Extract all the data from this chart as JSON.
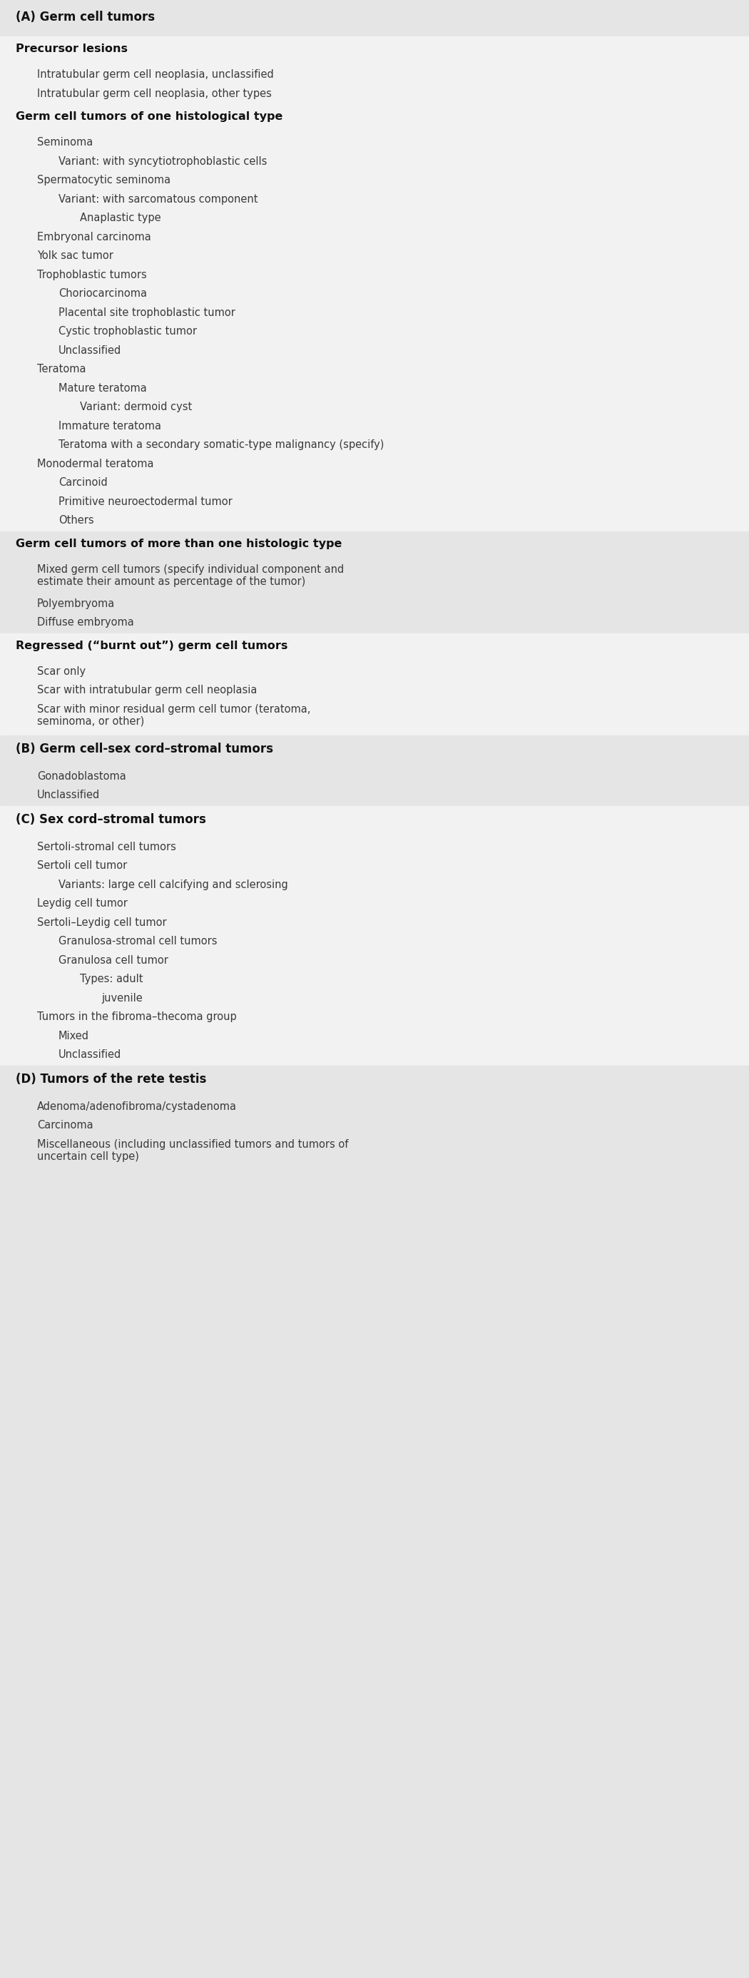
{
  "light_gray_bg": "#e5e5e5",
  "white_bg": "#f2f2f2",
  "text_color": "#3a3a3a",
  "dark_text": "#111111",
  "sections": [
    {
      "text": "(A) Germ cell tumors",
      "style": "section_header",
      "indent": 0,
      "bg": "light_gray"
    },
    {
      "text": "Precursor lesions",
      "style": "subsection_bold",
      "indent": 0,
      "bg": "white"
    },
    {
      "text": "Intratubular germ cell neoplasia, unclassified",
      "style": "normal",
      "indent": 1,
      "bg": "white"
    },
    {
      "text": "Intratubular germ cell neoplasia, other types",
      "style": "normal",
      "indent": 1,
      "bg": "white"
    },
    {
      "text": "Germ cell tumors of one histological type",
      "style": "subsection_bold",
      "indent": 0,
      "bg": "white"
    },
    {
      "text": "Seminoma",
      "style": "normal",
      "indent": 1,
      "bg": "white"
    },
    {
      "text": "Variant: with syncytiotrophoblastic cells",
      "style": "normal",
      "indent": 2,
      "bg": "white"
    },
    {
      "text": "Spermatocytic seminoma",
      "style": "normal",
      "indent": 1,
      "bg": "white"
    },
    {
      "text": "Variant: with sarcomatous component",
      "style": "normal",
      "indent": 2,
      "bg": "white"
    },
    {
      "text": "Anaplastic type",
      "style": "normal",
      "indent": 3,
      "bg": "white"
    },
    {
      "text": "Embryonal carcinoma",
      "style": "normal",
      "indent": 1,
      "bg": "white"
    },
    {
      "text": "Yolk sac tumor",
      "style": "normal",
      "indent": 1,
      "bg": "white"
    },
    {
      "text": "Trophoblastic tumors",
      "style": "normal",
      "indent": 1,
      "bg": "white"
    },
    {
      "text": "Choriocarcinoma",
      "style": "normal",
      "indent": 2,
      "bg": "white"
    },
    {
      "text": "Placental site trophoblastic tumor",
      "style": "normal",
      "indent": 2,
      "bg": "white"
    },
    {
      "text": "Cystic trophoblastic tumor",
      "style": "normal",
      "indent": 2,
      "bg": "white"
    },
    {
      "text": "Unclassified",
      "style": "normal",
      "indent": 2,
      "bg": "white"
    },
    {
      "text": "Teratoma",
      "style": "normal",
      "indent": 1,
      "bg": "white"
    },
    {
      "text": "Mature teratoma",
      "style": "normal",
      "indent": 2,
      "bg": "white"
    },
    {
      "text": "Variant: dermoid cyst",
      "style": "normal",
      "indent": 3,
      "bg": "white"
    },
    {
      "text": "Immature teratoma",
      "style": "normal",
      "indent": 2,
      "bg": "white"
    },
    {
      "text": "Teratoma with a secondary somatic-type malignancy (specify)",
      "style": "normal",
      "indent": 2,
      "bg": "white"
    },
    {
      "text": "Monodermal teratoma",
      "style": "normal",
      "indent": 1,
      "bg": "white"
    },
    {
      "text": "Carcinoid",
      "style": "normal",
      "indent": 2,
      "bg": "white"
    },
    {
      "text": "Primitive neuroectodermal tumor",
      "style": "normal",
      "indent": 2,
      "bg": "white"
    },
    {
      "text": "Others",
      "style": "normal",
      "indent": 2,
      "bg": "white"
    },
    {
      "text": "Germ cell tumors of more than one histologic type",
      "style": "subsection_bold",
      "indent": 0,
      "bg": "light_gray"
    },
    {
      "text": "Mixed germ cell tumors (specify individual component and\nestimate their amount as percentage of the tumor)",
      "style": "normal",
      "indent": 1,
      "bg": "light_gray"
    },
    {
      "text": "Polyembryoma",
      "style": "normal",
      "indent": 1,
      "bg": "light_gray"
    },
    {
      "text": "Diffuse embryoma",
      "style": "normal",
      "indent": 1,
      "bg": "light_gray"
    },
    {
      "text": "Regressed (“burnt out”) germ cell tumors",
      "style": "subsection_bold",
      "indent": 0,
      "bg": "white"
    },
    {
      "text": "Scar only",
      "style": "normal",
      "indent": 1,
      "bg": "white"
    },
    {
      "text": "Scar with intratubular germ cell neoplasia",
      "style": "normal",
      "indent": 1,
      "bg": "white"
    },
    {
      "text": "Scar with minor residual germ cell tumor (teratoma,\nseminoma, or other)",
      "style": "normal",
      "indent": 1,
      "bg": "white"
    },
    {
      "text": "(B) Germ cell-sex cord–stromal tumors",
      "style": "section_header",
      "indent": 0,
      "bg": "light_gray"
    },
    {
      "text": "Gonadoblastoma",
      "style": "normal",
      "indent": 1,
      "bg": "light_gray"
    },
    {
      "text": "Unclassified",
      "style": "normal",
      "indent": 1,
      "bg": "light_gray"
    },
    {
      "text": "(C) Sex cord–stromal tumors",
      "style": "section_header",
      "indent": 0,
      "bg": "white"
    },
    {
      "text": "Sertoli-stromal cell tumors",
      "style": "normal",
      "indent": 1,
      "bg": "white"
    },
    {
      "text": "Sertoli cell tumor",
      "style": "normal",
      "indent": 1,
      "bg": "white"
    },
    {
      "text": "Variants: large cell calcifying and sclerosing",
      "style": "normal",
      "indent": 2,
      "bg": "white"
    },
    {
      "text": "Leydig cell tumor",
      "style": "normal",
      "indent": 1,
      "bg": "white"
    },
    {
      "text": "Sertoli–Leydig cell tumor",
      "style": "normal",
      "indent": 1,
      "bg": "white"
    },
    {
      "text": "Granulosa-stromal cell tumors",
      "style": "normal",
      "indent": 2,
      "bg": "white"
    },
    {
      "text": "Granulosa cell tumor",
      "style": "normal",
      "indent": 2,
      "bg": "white"
    },
    {
      "text": "Types: adult",
      "style": "normal",
      "indent": 3,
      "bg": "white"
    },
    {
      "text": "juvenile",
      "style": "normal",
      "indent": 4,
      "bg": "white"
    },
    {
      "text": "Tumors in the fibroma–thecoma group",
      "style": "normal",
      "indent": 1,
      "bg": "white"
    },
    {
      "text": "Mixed",
      "style": "normal",
      "indent": 2,
      "bg": "white"
    },
    {
      "text": "Unclassified",
      "style": "normal",
      "indent": 2,
      "bg": "white"
    },
    {
      "text": "(D) Tumors of the rete testis",
      "style": "section_header",
      "indent": 0,
      "bg": "light_gray"
    },
    {
      "text": "Adenoma/adenofibroma/cystadenoma",
      "style": "normal",
      "indent": 1,
      "bg": "light_gray"
    },
    {
      "text": "Carcinoma",
      "style": "normal",
      "indent": 1,
      "bg": "light_gray"
    },
    {
      "text": "Miscellaneous (including unclassified tumors and tumors of\nuncertain cell type)",
      "style": "normal",
      "indent": 1,
      "bg": "light_gray"
    }
  ]
}
